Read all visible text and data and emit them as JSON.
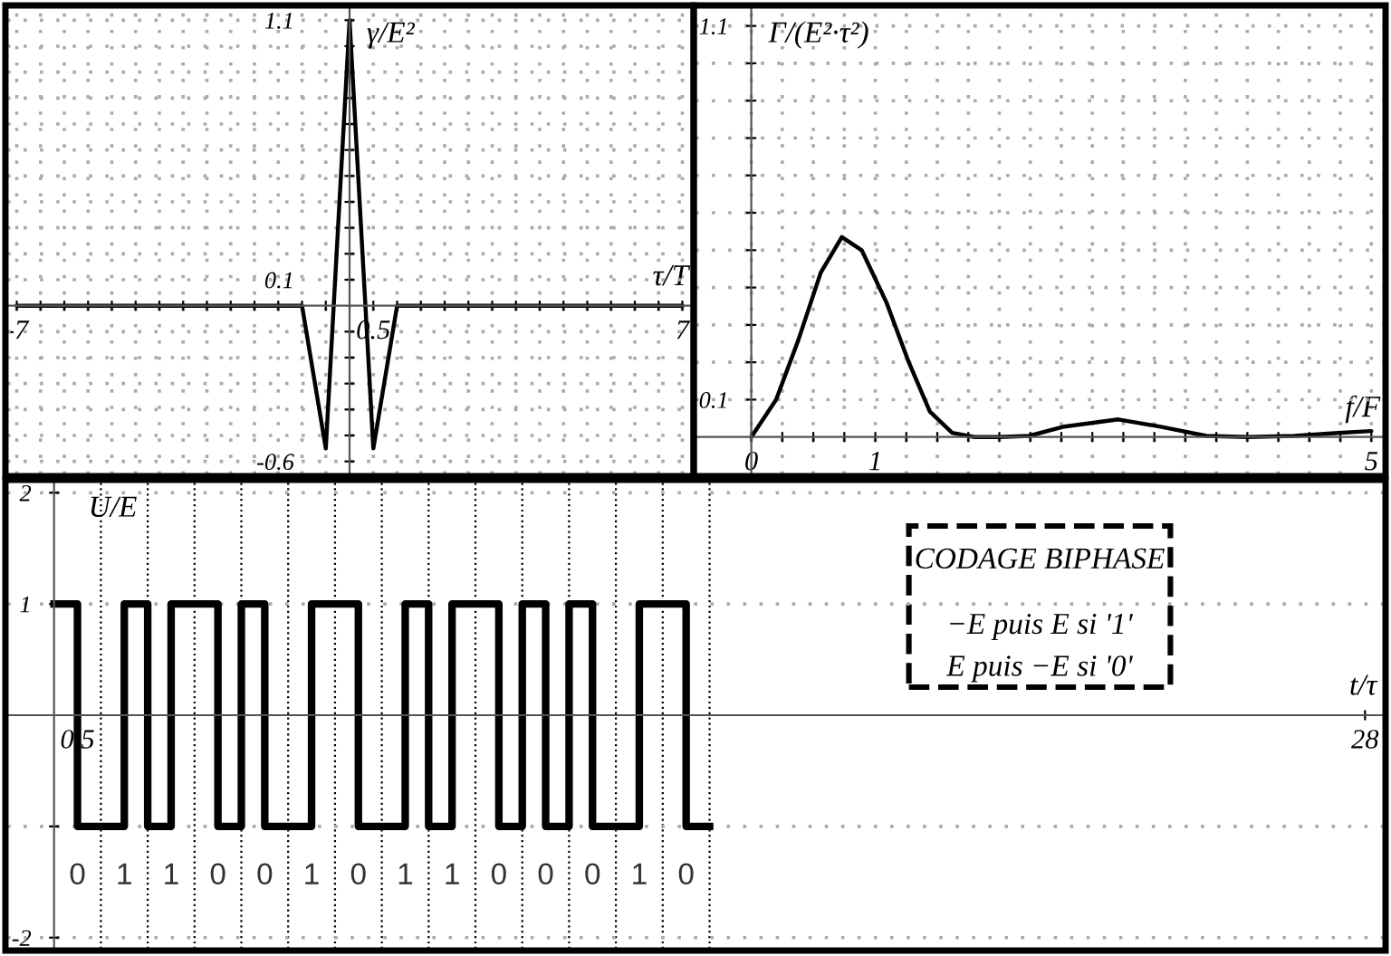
{
  "chart_data": [
    {
      "type": "line",
      "xlabel": "τ/T",
      "ylabel": "γ/E²",
      "xlim": [
        -7.2,
        7.2
      ],
      "ylim": [
        -0.65,
        1.15
      ],
      "grid": true,
      "line_style": "solid",
      "x": [
        -7,
        -1,
        -0.5,
        0,
        0.5,
        1,
        7
      ],
      "series": [
        {
          "color": "#000000",
          "values": [
            0,
            0,
            -0.55,
            1.1,
            -0.55,
            0,
            0
          ]
        }
      ],
      "xticks": [
        -7,
        {
          "value": -6.5,
          "label": null
        },
        {
          "value": -6,
          "label": null
        },
        {
          "value": -5.5,
          "label": null
        },
        {
          "value": -5,
          "label": null
        },
        {
          "value": -4.5,
          "label": null
        },
        {
          "value": -4,
          "label": null
        },
        {
          "value": -3.5,
          "label": null
        },
        {
          "value": -3,
          "label": null
        },
        {
          "value": -2.5,
          "label": null
        },
        {
          "value": -2,
          "label": null
        },
        {
          "value": -1.5,
          "label": null
        },
        {
          "value": -1,
          "label": null
        },
        {
          "value": -0.5,
          "label": null
        },
        {
          "value": 0.5,
          "label": "0.5"
        },
        {
          "value": 1,
          "label": null
        },
        {
          "value": 1.5,
          "label": null
        },
        {
          "value": 2,
          "label": null
        },
        {
          "value": 2.5,
          "label": null
        },
        {
          "value": 3,
          "label": null
        },
        {
          "value": 3.5,
          "label": null
        },
        {
          "value": 4,
          "label": null
        },
        {
          "value": 4.5,
          "label": null
        },
        {
          "value": 5,
          "label": null
        },
        {
          "value": 5.5,
          "label": null
        },
        {
          "value": 6,
          "label": null
        },
        {
          "value": 6.5,
          "label": null
        },
        7
      ],
      "yticks": [
        -0.6,
        {
          "value": -0.5,
          "label": null
        },
        {
          "value": -0.4,
          "label": null
        },
        {
          "value": -0.3,
          "label": null
        },
        {
          "value": -0.2,
          "label": null
        },
        {
          "value": -0.1,
          "label": null
        },
        0.1,
        {
          "value": 0.2,
          "label": null
        },
        {
          "value": 0.3,
          "label": null
        },
        {
          "value": 0.4,
          "label": null
        },
        {
          "value": 0.5,
          "label": null
        },
        {
          "value": 0.6,
          "label": null
        },
        {
          "value": 0.7,
          "label": null
        },
        {
          "value": 0.8,
          "label": null
        },
        {
          "value": 0.9,
          "label": null
        },
        {
          "value": 1.0,
          "label": null
        },
        1.1
      ]
    },
    {
      "type": "line",
      "xlabel": "f/F",
      "ylabel": "Γ/(E²·τ²)",
      "xlim": [
        -0.45,
        5.1
      ],
      "ylim": [
        -0.1,
        1.15
      ],
      "grid": true,
      "line_style": "solid",
      "x": [
        0,
        0.2,
        0.38,
        0.56,
        0.73,
        0.89,
        1.09,
        1.27,
        1.44,
        1.62,
        1.8,
        2.0,
        2.24,
        2.51,
        2.96,
        3.31,
        3.67,
        4.0,
        4.38,
        4.73,
        5.0
      ],
      "series": [
        {
          "color": "#000000",
          "values": [
            0,
            0.1,
            0.26,
            0.44,
            0.535,
            0.5,
            0.36,
            0.2,
            0.068,
            0.011,
            0,
            0,
            0.003,
            0.027,
            0.047,
            0.027,
            0.003,
            0,
            0.003,
            0.011,
            0.016
          ]
        }
      ],
      "xticks": [
        0,
        {
          "value": 0.25,
          "label": null
        },
        {
          "value": 0.5,
          "label": null
        },
        {
          "value": 0.75,
          "label": null
        },
        1,
        {
          "value": 1.25,
          "label": null
        },
        {
          "value": 1.5,
          "label": null
        },
        {
          "value": 1.75,
          "label": null
        },
        {
          "value": 2,
          "label": null
        },
        {
          "value": 2.25,
          "label": null
        },
        {
          "value": 2.5,
          "label": null
        },
        {
          "value": 2.75,
          "label": null
        },
        {
          "value": 3,
          "label": null
        },
        {
          "value": 3.25,
          "label": null
        },
        {
          "value": 3.5,
          "label": null
        },
        {
          "value": 3.75,
          "label": null
        },
        {
          "value": 4,
          "label": null
        },
        {
          "value": 4.25,
          "label": null
        },
        {
          "value": 4.5,
          "label": null
        },
        {
          "value": 4.75,
          "label": null
        },
        5
      ],
      "yticks": [
        0.1,
        {
          "value": 0.2,
          "label": null
        },
        {
          "value": 0.3,
          "label": null
        },
        {
          "value": 0.4,
          "label": null
        },
        {
          "value": 0.5,
          "label": null
        },
        {
          "value": 0.6,
          "label": null
        },
        {
          "value": 0.7,
          "label": null
        },
        {
          "value": 0.8,
          "label": null
        },
        {
          "value": 0.9,
          "label": null
        },
        {
          "value": 1.0,
          "label": null
        },
        1.1
      ]
    },
    {
      "type": "step",
      "xlabel": "t/τ",
      "ylabel": "U/E",
      "xlim": [
        -1.0,
        28.4
      ],
      "ylim": [
        -2.1,
        2.1
      ],
      "grid": "y",
      "line_style": "solid",
      "x": [
        0,
        0.5,
        1,
        1.5,
        2,
        2.5,
        3,
        3.5,
        4,
        4.5,
        5,
        5.5,
        6,
        6.5,
        7,
        7.5,
        8,
        8.5,
        9,
        9.5,
        10,
        10.5,
        11,
        11.5,
        12,
        12.5,
        13,
        13.5,
        14
      ],
      "series": [
        {
          "color": "#000000",
          "values": [
            1,
            -1,
            -1,
            1,
            -1,
            1,
            1,
            -1,
            1,
            -1,
            -1,
            1,
            1,
            -1,
            -1,
            1,
            -1,
            1,
            1,
            -1,
            1,
            -1,
            1,
            -1,
            -1,
            1,
            1,
            -1,
            -1
          ]
        }
      ],
      "xticks": [
        {
          "value": 0.5,
          "label": "0.5"
        },
        28
      ],
      "yticks": [
        -2,
        {
          "value": -1,
          "label": null
        },
        1,
        2
      ],
      "ref_lines": [
        {
          "axis": "x",
          "value": 1,
          "line_style": "dotted",
          "color": "#000000"
        },
        {
          "axis": "x",
          "value": 2,
          "line_style": "dotted",
          "color": "#000000"
        },
        {
          "axis": "x",
          "value": 3,
          "line_style": "dotted",
          "color": "#000000"
        },
        {
          "axis": "x",
          "value": 4,
          "line_style": "dotted",
          "color": "#000000"
        },
        {
          "axis": "x",
          "value": 5,
          "line_style": "dotted",
          "color": "#000000"
        },
        {
          "axis": "x",
          "value": 6,
          "line_style": "dotted",
          "color": "#000000"
        },
        {
          "axis": "x",
          "value": 7,
          "line_style": "dotted",
          "color": "#000000"
        },
        {
          "axis": "x",
          "value": 8,
          "line_style": "dotted",
          "color": "#000000"
        },
        {
          "axis": "x",
          "value": 9,
          "line_style": "dotted",
          "color": "#000000"
        },
        {
          "axis": "x",
          "value": 10,
          "line_style": "dotted",
          "color": "#000000"
        },
        {
          "axis": "x",
          "value": 11,
          "line_style": "dotted",
          "color": "#000000"
        },
        {
          "axis": "x",
          "value": 12,
          "line_style": "dotted",
          "color": "#000000"
        },
        {
          "axis": "x",
          "value": 13,
          "line_style": "dotted",
          "color": "#000000"
        },
        {
          "axis": "x",
          "value": 14,
          "line_style": "dotted",
          "color": "#000000"
        }
      ],
      "annotations": [
        "CODAGE BIPHASE",
        "−E puis E si '1'",
        "E puis −E si '0'",
        "0",
        "1",
        "1",
        "0",
        "0",
        "1",
        "0",
        "1",
        "1",
        "0",
        "0",
        "0",
        "1",
        "0"
      ]
    }
  ]
}
